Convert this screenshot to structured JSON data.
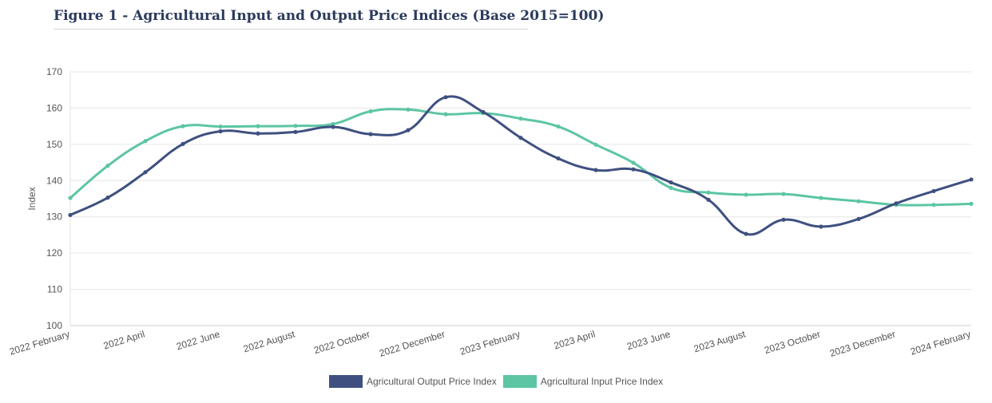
{
  "page": {
    "title": "Figure 1 - Agricultural Input and Output Price Indices (Base 2015=100)"
  },
  "colors": {
    "output": "#3f5080",
    "input": "#5cc5a4",
    "grid": "#e6e6e6"
  },
  "chart_data": {
    "type": "line",
    "title": "Figure 1 - Agricultural Input and Output Price Indices (Base 2015=100)",
    "xlabel": "",
    "ylabel": "Index",
    "ylim": [
      100,
      170
    ],
    "yticks": [
      100,
      110,
      120,
      130,
      140,
      150,
      160,
      170
    ],
    "grid": true,
    "legend": "bottom-center",
    "x": [
      "2022 February",
      "2022 March",
      "2022 April",
      "2022 May",
      "2022 June",
      "2022 July",
      "2022 August",
      "2022 September",
      "2022 October",
      "2022 November",
      "2022 December",
      "2023 January",
      "2023 February",
      "2023 March",
      "2023 April",
      "2023 May",
      "2023 June",
      "2023 July",
      "2023 August",
      "2023 September",
      "2023 October",
      "2023 November",
      "2023 December",
      "2024 January",
      "2024 February"
    ],
    "xtick_labels": [
      "2022 February",
      "2022 April",
      "2022 June",
      "2022 August",
      "2022 October",
      "2022 December",
      "2023 February",
      "2023 April",
      "2023 June",
      "2023 August",
      "2023 October",
      "2023 December",
      "2024 February"
    ],
    "series": [
      {
        "name": "Agricultural Output Price Index",
        "color": "#3f5080",
        "values": [
          130.5,
          135.3,
          142.3,
          150.1,
          153.6,
          153.0,
          153.4,
          154.8,
          152.8,
          153.9,
          163.0,
          158.9,
          151.8,
          146.1,
          142.9,
          143.1,
          139.5,
          134.7,
          125.3,
          129.2,
          127.3,
          129.4,
          133.7,
          137.1,
          140.3
        ]
      },
      {
        "name": "Agricultural Input Price Index",
        "color": "#5cc5a4",
        "values": [
          135.2,
          144.1,
          150.9,
          155.0,
          154.9,
          155.0,
          155.1,
          155.6,
          159.1,
          159.6,
          158.3,
          158.6,
          157.1,
          154.9,
          149.9,
          144.9,
          138.0,
          136.7,
          136.1,
          136.3,
          135.2,
          134.3,
          133.3,
          133.3,
          133.6
        ]
      }
    ]
  }
}
